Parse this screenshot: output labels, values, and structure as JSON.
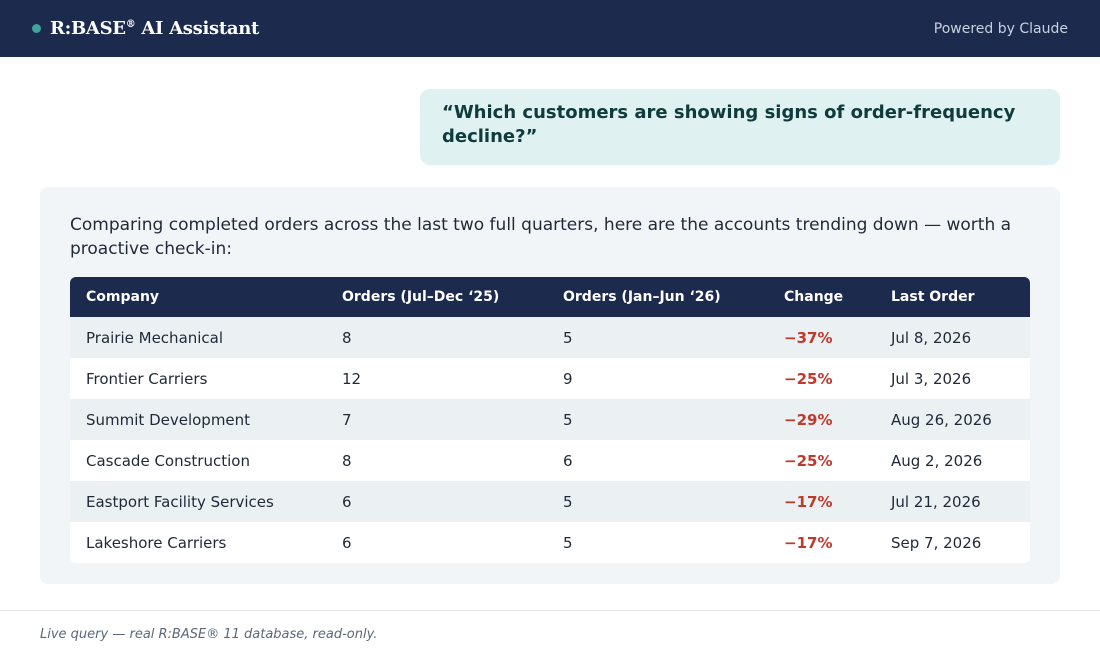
{
  "header": {
    "brand_name": "R:BASE",
    "brand_reg": "®",
    "brand_suffix": " AI Assistant",
    "powered_by": "Powered by Claude",
    "accent_color": "#3fa69a",
    "bar_color": "#1c2a4e"
  },
  "question": {
    "text": "“Which customers are showing signs of order-frequency decline?”"
  },
  "answer": {
    "intro": "Comparing completed orders across the last two full quarters, here are the accounts trending down — worth a proactive check-in:",
    "table": {
      "headers": [
        "Company",
        "Orders (Jul–Dec ‘25)",
        "Orders (Jan–Jun ‘26)",
        "Change",
        "Last Order"
      ],
      "rows": [
        [
          "Prairie Mechanical",
          "8",
          "5",
          "−37%",
          "Jul 8, 2026"
        ],
        [
          "Frontier Carriers",
          "12",
          "9",
          "−25%",
          "Jul 3, 2026"
        ],
        [
          "Summit Development",
          "7",
          "5",
          "−29%",
          "Aug 26, 2026"
        ],
        [
          "Cascade Construction",
          "8",
          "6",
          "−25%",
          "Aug 2, 2026"
        ],
        [
          "Eastport Facility Services",
          "6",
          "5",
          "−17%",
          "Jul 21, 2026"
        ],
        [
          "Lakeshore Carriers",
          "6",
          "5",
          "−17%",
          "Sep 7, 2026"
        ]
      ],
      "negative_color": "#c0392b"
    }
  },
  "footer": {
    "note": "Live query — real R:BASE® 11 database, read-only."
  }
}
